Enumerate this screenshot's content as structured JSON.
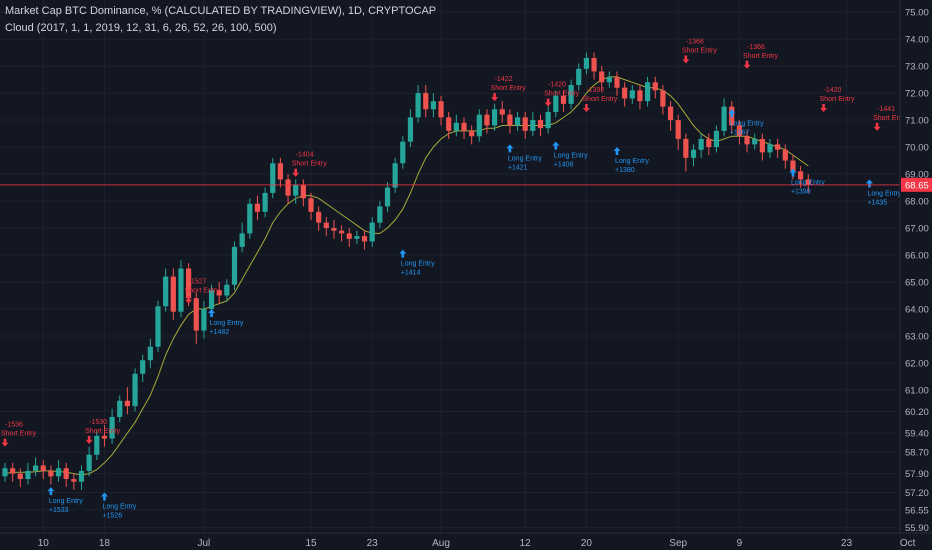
{
  "legend": {
    "title": "Market Cap BTC Dominance, % (CALCULATED BY TRADINGVIEW), 1D, CRYPTOCAP",
    "indicator": "Cloud (2017, 1, 1, 2019, 12, 31, 6, 26, 52, 26, 100, 500)"
  },
  "colors": {
    "background": "#131722",
    "grid": "#1e2230",
    "up": "#26a69a",
    "down": "#ef5350",
    "ma": "#a8a838",
    "text": "#b2b5be",
    "long": "#2196f3",
    "short": "#f23645",
    "price_line": "#f23645"
  },
  "chart_data": {
    "type": "candlestick",
    "title": "Market Cap BTC Dominance, % (CALCULATED BY TRADINGVIEW), 1D, CRYPTOCAP",
    "xlabel": "",
    "ylabel": "",
    "ylim": [
      55.7,
      75.3
    ],
    "y_ticks": [
      "75.00",
      "74.00",
      "73.00",
      "72.00",
      "71.00",
      "70.00",
      "69.00",
      "68.00",
      "67.00",
      "66.00",
      "65.00",
      "64.00",
      "63.00",
      "62.00",
      "61.00",
      "60.20",
      "59.40",
      "58.70",
      "57.90",
      "57.20",
      "56.55",
      "55.90"
    ],
    "x_ticks": [
      {
        "label": "10",
        "day": 5
      },
      {
        "label": "18",
        "day": 13
      },
      {
        "label": "Jul",
        "day": 26
      },
      {
        "label": "15",
        "day": 40
      },
      {
        "label": "23",
        "day": 48
      },
      {
        "label": "Aug",
        "day": 57
      },
      {
        "label": "12",
        "day": 68
      },
      {
        "label": "20",
        "day": 76
      },
      {
        "label": "Sep",
        "day": 88
      },
      {
        "label": "9",
        "day": 96
      },
      {
        "label": "23",
        "day": 110
      },
      {
        "label": "Oct",
        "day": 118
      }
    ],
    "last_price": 68.6,
    "last_price_label": "68.65",
    "candles": [
      [
        57.8,
        58.1,
        58.3,
        57.6
      ],
      [
        58.1,
        57.9,
        58.3,
        57.6
      ],
      [
        57.9,
        57.7,
        58.1,
        57.4
      ],
      [
        57.7,
        58.0,
        58.3,
        57.5
      ],
      [
        58.0,
        58.2,
        58.5,
        57.8
      ],
      [
        58.2,
        58.0,
        58.4,
        57.7
      ],
      [
        58.0,
        57.8,
        58.2,
        57.5
      ],
      [
        57.8,
        58.1,
        58.4,
        57.6
      ],
      [
        58.1,
        57.7,
        58.3,
        57.4
      ],
      [
        57.7,
        57.6,
        57.9,
        57.3
      ],
      [
        57.6,
        58.0,
        58.2,
        57.3
      ],
      [
        58.0,
        58.6,
        58.9,
        57.8
      ],
      [
        58.6,
        59.3,
        59.5,
        58.4
      ],
      [
        59.3,
        59.2,
        59.7,
        58.9
      ],
      [
        59.2,
        60.0,
        60.3,
        59.0
      ],
      [
        60.0,
        60.6,
        60.8,
        59.8
      ],
      [
        60.6,
        60.4,
        61.1,
        60.1
      ],
      [
        60.4,
        61.6,
        61.8,
        60.2
      ],
      [
        61.6,
        62.1,
        62.3,
        61.3
      ],
      [
        62.1,
        62.6,
        62.9,
        61.8
      ],
      [
        62.6,
        64.1,
        64.3,
        62.4
      ],
      [
        64.1,
        65.2,
        65.5,
        63.9
      ],
      [
        65.2,
        63.9,
        65.5,
        63.6
      ],
      [
        63.9,
        65.5,
        65.8,
        63.7
      ],
      [
        65.5,
        64.4,
        65.7,
        64.1
      ],
      [
        64.4,
        63.2,
        64.6,
        62.7
      ],
      [
        63.2,
        64.0,
        64.3,
        62.9
      ],
      [
        64.0,
        64.7,
        64.9,
        63.8
      ],
      [
        64.7,
        64.5,
        65.0,
        64.2
      ],
      [
        64.5,
        64.9,
        65.1,
        64.3
      ],
      [
        64.9,
        66.3,
        66.5,
        64.7
      ],
      [
        66.3,
        66.8,
        67.2,
        66.1
      ],
      [
        66.8,
        67.9,
        68.1,
        66.6
      ],
      [
        67.9,
        67.6,
        68.2,
        67.3
      ],
      [
        67.6,
        68.3,
        68.5,
        67.4
      ],
      [
        68.3,
        69.4,
        69.6,
        68.1
      ],
      [
        69.4,
        68.8,
        69.6,
        68.5
      ],
      [
        68.8,
        68.2,
        69.0,
        67.9
      ],
      [
        68.2,
        68.6,
        68.8,
        67.9
      ],
      [
        68.6,
        68.1,
        68.8,
        67.8
      ],
      [
        68.1,
        67.6,
        68.3,
        67.3
      ],
      [
        67.6,
        67.2,
        67.8,
        66.9
      ],
      [
        67.2,
        67.0,
        67.4,
        66.7
      ],
      [
        67.0,
        66.9,
        67.3,
        66.6
      ],
      [
        66.9,
        66.8,
        67.1,
        66.5
      ],
      [
        66.8,
        66.6,
        67.0,
        66.3
      ],
      [
        66.6,
        66.7,
        66.9,
        66.4
      ],
      [
        66.7,
        66.5,
        66.9,
        66.2
      ],
      [
        66.5,
        67.2,
        67.4,
        66.3
      ],
      [
        67.2,
        67.8,
        68.0,
        67.0
      ],
      [
        67.8,
        68.5,
        68.7,
        67.6
      ],
      [
        68.5,
        69.4,
        69.6,
        68.3
      ],
      [
        69.4,
        70.2,
        70.4,
        69.2
      ],
      [
        70.2,
        71.1,
        71.4,
        70.0
      ],
      [
        71.1,
        72.0,
        72.3,
        70.9
      ],
      [
        72.0,
        71.4,
        72.3,
        71.1
      ],
      [
        71.4,
        71.7,
        72.0,
        71.1
      ],
      [
        71.7,
        71.1,
        71.9,
        70.8
      ],
      [
        71.1,
        70.6,
        71.3,
        70.3
      ],
      [
        70.6,
        70.9,
        71.2,
        70.4
      ],
      [
        70.9,
        70.6,
        71.1,
        70.3
      ],
      [
        70.6,
        70.4,
        70.8,
        70.1
      ],
      [
        70.4,
        71.2,
        71.4,
        70.2
      ],
      [
        71.2,
        70.8,
        71.4,
        70.5
      ],
      [
        70.8,
        71.4,
        71.6,
        70.6
      ],
      [
        71.4,
        71.2,
        71.7,
        70.9
      ],
      [
        71.2,
        70.8,
        71.4,
        70.5
      ],
      [
        70.8,
        71.1,
        71.3,
        70.6
      ],
      [
        71.1,
        70.6,
        71.3,
        70.3
      ],
      [
        70.6,
        71.0,
        71.3,
        70.4
      ],
      [
        71.0,
        70.7,
        71.2,
        70.4
      ],
      [
        70.7,
        71.3,
        71.5,
        70.5
      ],
      [
        71.3,
        71.9,
        72.1,
        71.1
      ],
      [
        71.9,
        71.6,
        72.1,
        71.3
      ],
      [
        71.6,
        72.3,
        72.5,
        71.4
      ],
      [
        72.3,
        72.9,
        73.1,
        72.1
      ],
      [
        72.9,
        73.3,
        73.5,
        72.7
      ],
      [
        73.3,
        72.8,
        73.5,
        72.5
      ],
      [
        72.8,
        72.4,
        73.0,
        72.1
      ],
      [
        72.4,
        72.6,
        72.8,
        72.2
      ],
      [
        72.6,
        72.2,
        72.8,
        71.9
      ],
      [
        72.2,
        71.8,
        72.4,
        71.5
      ],
      [
        71.8,
        72.1,
        72.3,
        71.6
      ],
      [
        72.1,
        71.7,
        72.3,
        71.4
      ],
      [
        71.7,
        72.4,
        72.6,
        71.5
      ],
      [
        72.4,
        72.1,
        72.6,
        71.8
      ],
      [
        72.1,
        71.5,
        72.3,
        71.2
      ],
      [
        71.5,
        71.0,
        71.7,
        70.6
      ],
      [
        71.0,
        70.3,
        71.2,
        69.9
      ],
      [
        70.3,
        69.6,
        70.5,
        69.1
      ],
      [
        69.6,
        69.9,
        70.1,
        69.3
      ],
      [
        69.9,
        70.3,
        70.5,
        69.6
      ],
      [
        70.3,
        70.0,
        70.5,
        69.7
      ],
      [
        70.0,
        70.6,
        70.8,
        69.8
      ],
      [
        70.6,
        71.5,
        71.8,
        70.4
      ],
      [
        71.5,
        70.8,
        71.7,
        70.5
      ],
      [
        70.8,
        70.4,
        71.0,
        70.1
      ],
      [
        70.4,
        70.1,
        70.6,
        69.8
      ],
      [
        70.1,
        70.3,
        70.5,
        69.9
      ],
      [
        70.3,
        69.8,
        70.5,
        69.5
      ],
      [
        69.8,
        70.1,
        70.3,
        69.6
      ],
      [
        70.1,
        69.9,
        70.3,
        69.6
      ],
      [
        69.9,
        69.5,
        70.1,
        69.2
      ],
      [
        69.5,
        69.1,
        69.7,
        68.8
      ],
      [
        69.1,
        68.8,
        69.3,
        68.5
      ],
      [
        68.8,
        68.6,
        69.0,
        68.3
      ]
    ],
    "ma": [
      57.9,
      57.95,
      57.95,
      57.95,
      57.97,
      58.0,
      58.0,
      57.98,
      57.95,
      57.9,
      57.85,
      57.9,
      58.05,
      58.3,
      58.6,
      59.0,
      59.4,
      59.8,
      60.3,
      60.8,
      61.5,
      62.3,
      62.9,
      63.4,
      63.8,
      64.0,
      64.0,
      64.1,
      64.2,
      64.3,
      64.6,
      65.1,
      65.6,
      66.1,
      66.6,
      67.2,
      67.6,
      67.9,
      68.1,
      68.2,
      68.2,
      68.1,
      67.9,
      67.7,
      67.5,
      67.3,
      67.1,
      66.9,
      66.8,
      66.8,
      67.0,
      67.3,
      67.7,
      68.3,
      69.0,
      69.6,
      70.0,
      70.3,
      70.5,
      70.6,
      70.6,
      70.6,
      70.6,
      70.7,
      70.7,
      70.8,
      70.8,
      70.8,
      70.8,
      70.8,
      70.8,
      70.8,
      70.9,
      71.1,
      71.3,
      71.6,
      72.0,
      72.3,
      72.5,
      72.6,
      72.6,
      72.5,
      72.4,
      72.3,
      72.2,
      72.2,
      72.1,
      71.9,
      71.6,
      71.2,
      70.8,
      70.5,
      70.3,
      70.2,
      70.3,
      70.4,
      70.4,
      70.4,
      70.3,
      70.2,
      70.1,
      70.0,
      69.9,
      69.7,
      69.5,
      69.3
    ],
    "signals": [
      {
        "type": "short",
        "day": 0,
        "price": 58.9,
        "text": "-1536",
        "label": "Short Entry"
      },
      {
        "type": "short",
        "day": 11,
        "price": 59.0,
        "text": "-1530",
        "label": "Short Entry"
      },
      {
        "type": "long",
        "day": 6,
        "price": 57.4,
        "text": "+1533",
        "label": "Long Entry"
      },
      {
        "type": "long",
        "day": 13,
        "price": 57.2,
        "text": "+1526",
        "label": "Long Entry"
      },
      {
        "type": "short",
        "day": 24,
        "price": 64.2,
        "text": "-1527",
        "label": "Short Entry"
      },
      {
        "type": "long",
        "day": 27,
        "price": 64.0,
        "text": "+1482",
        "label": "Long Entry"
      },
      {
        "type": "short",
        "day": 38,
        "price": 68.9,
        "text": "-1404",
        "label": "Short Entry"
      },
      {
        "type": "long",
        "day": 52,
        "price": 66.2,
        "text": "+1414",
        "label": "Long Entry"
      },
      {
        "type": "short",
        "day": 64,
        "price": 71.7,
        "text": "-1422",
        "label": "Short Entry"
      },
      {
        "type": "long",
        "day": 66,
        "price": 70.1,
        "text": "+1421",
        "label": "Long Entry"
      },
      {
        "type": "short",
        "day": 71,
        "price": 71.5,
        "text": "-1420",
        "label": "Short Entry"
      },
      {
        "type": "long",
        "day": 72,
        "price": 70.2,
        "text": "+1406",
        "label": "Long Entry"
      },
      {
        "type": "short",
        "day": 76,
        "price": 71.3,
        "text": "-1392",
        "label": "Short Entry"
      },
      {
        "type": "long",
        "day": 80,
        "price": 70.0,
        "text": "+1380",
        "label": "Long Entry"
      },
      {
        "type": "short",
        "day": 89,
        "price": 73.1,
        "text": "-1368",
        "label": "Short Entry"
      },
      {
        "type": "long",
        "day": 95,
        "price": 71.4,
        "text": "+1367",
        "label": "Long Entry"
      },
      {
        "type": "short",
        "day": 97,
        "price": 72.9,
        "text": "-1366",
        "label": "Short Entry"
      },
      {
        "type": "short",
        "day": 107,
        "price": 71.3,
        "text": "-1420",
        "label": "Short Entry"
      },
      {
        "type": "long",
        "day": 103,
        "price": 69.2,
        "text": "+1398",
        "label": "Long Entry"
      },
      {
        "type": "short",
        "day": 114,
        "price": 70.6,
        "text": "-1441",
        "label": "Short Entry"
      },
      {
        "type": "long",
        "day": 113,
        "price": 68.8,
        "text": "+1435",
        "label": "Long Entry"
      }
    ]
  }
}
